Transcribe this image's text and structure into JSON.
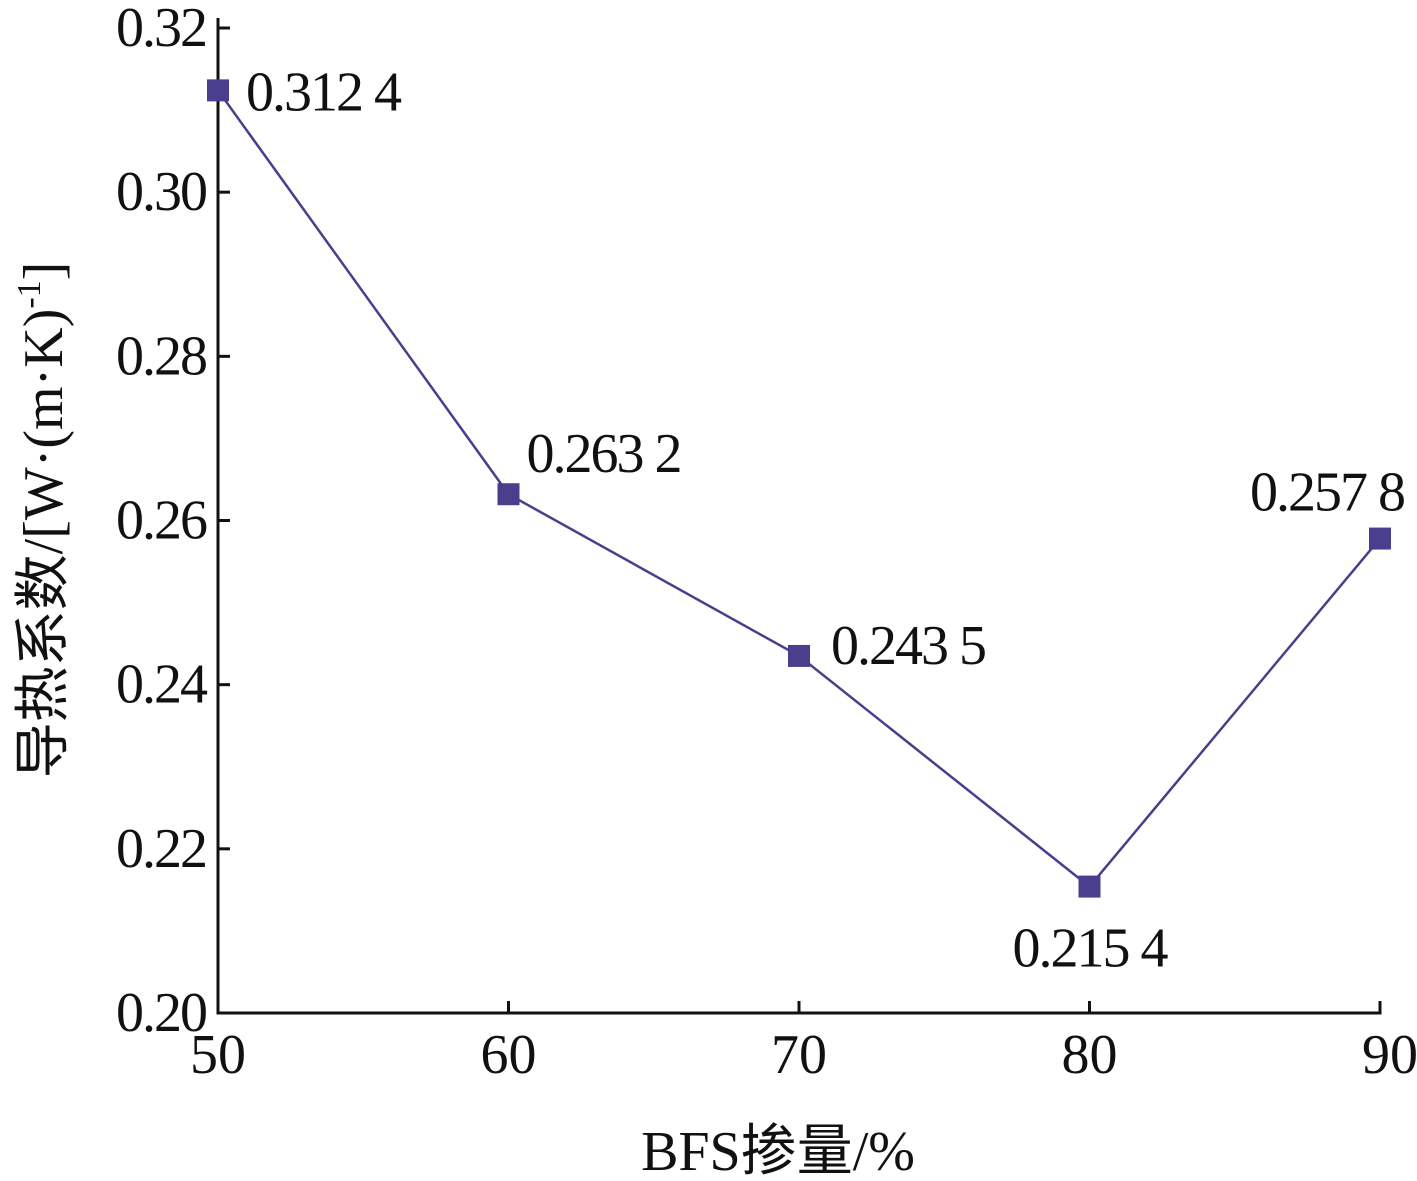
{
  "chart_data": {
    "type": "line",
    "title": "",
    "xlabel": "BFS掺量/%",
    "ylabel_main": "导热系数/[W·(m·K)",
    "ylabel_sup": "-1",
    "ylabel_end": "]",
    "x": [
      50,
      60,
      70,
      80,
      90
    ],
    "xlim": [
      50,
      90
    ],
    "ylim": [
      0.2,
      0.32
    ],
    "xticks": [
      "50",
      "60",
      "70",
      "80",
      "90"
    ],
    "yticks": [
      "0.20",
      "0.22",
      "0.24",
      "0.26",
      "0.28",
      "0.30",
      "0.32"
    ],
    "series": [
      {
        "name": "导热系数",
        "values": [
          0.3124,
          0.2632,
          0.2435,
          0.2154,
          0.2578
        ],
        "labels": [
          "0.312 4",
          "0.263 2",
          "0.243 5",
          "0.215 4",
          "0.257 8"
        ],
        "color": "#4a3f8c",
        "marker": "square"
      }
    ],
    "grid": false,
    "legend": "none"
  }
}
